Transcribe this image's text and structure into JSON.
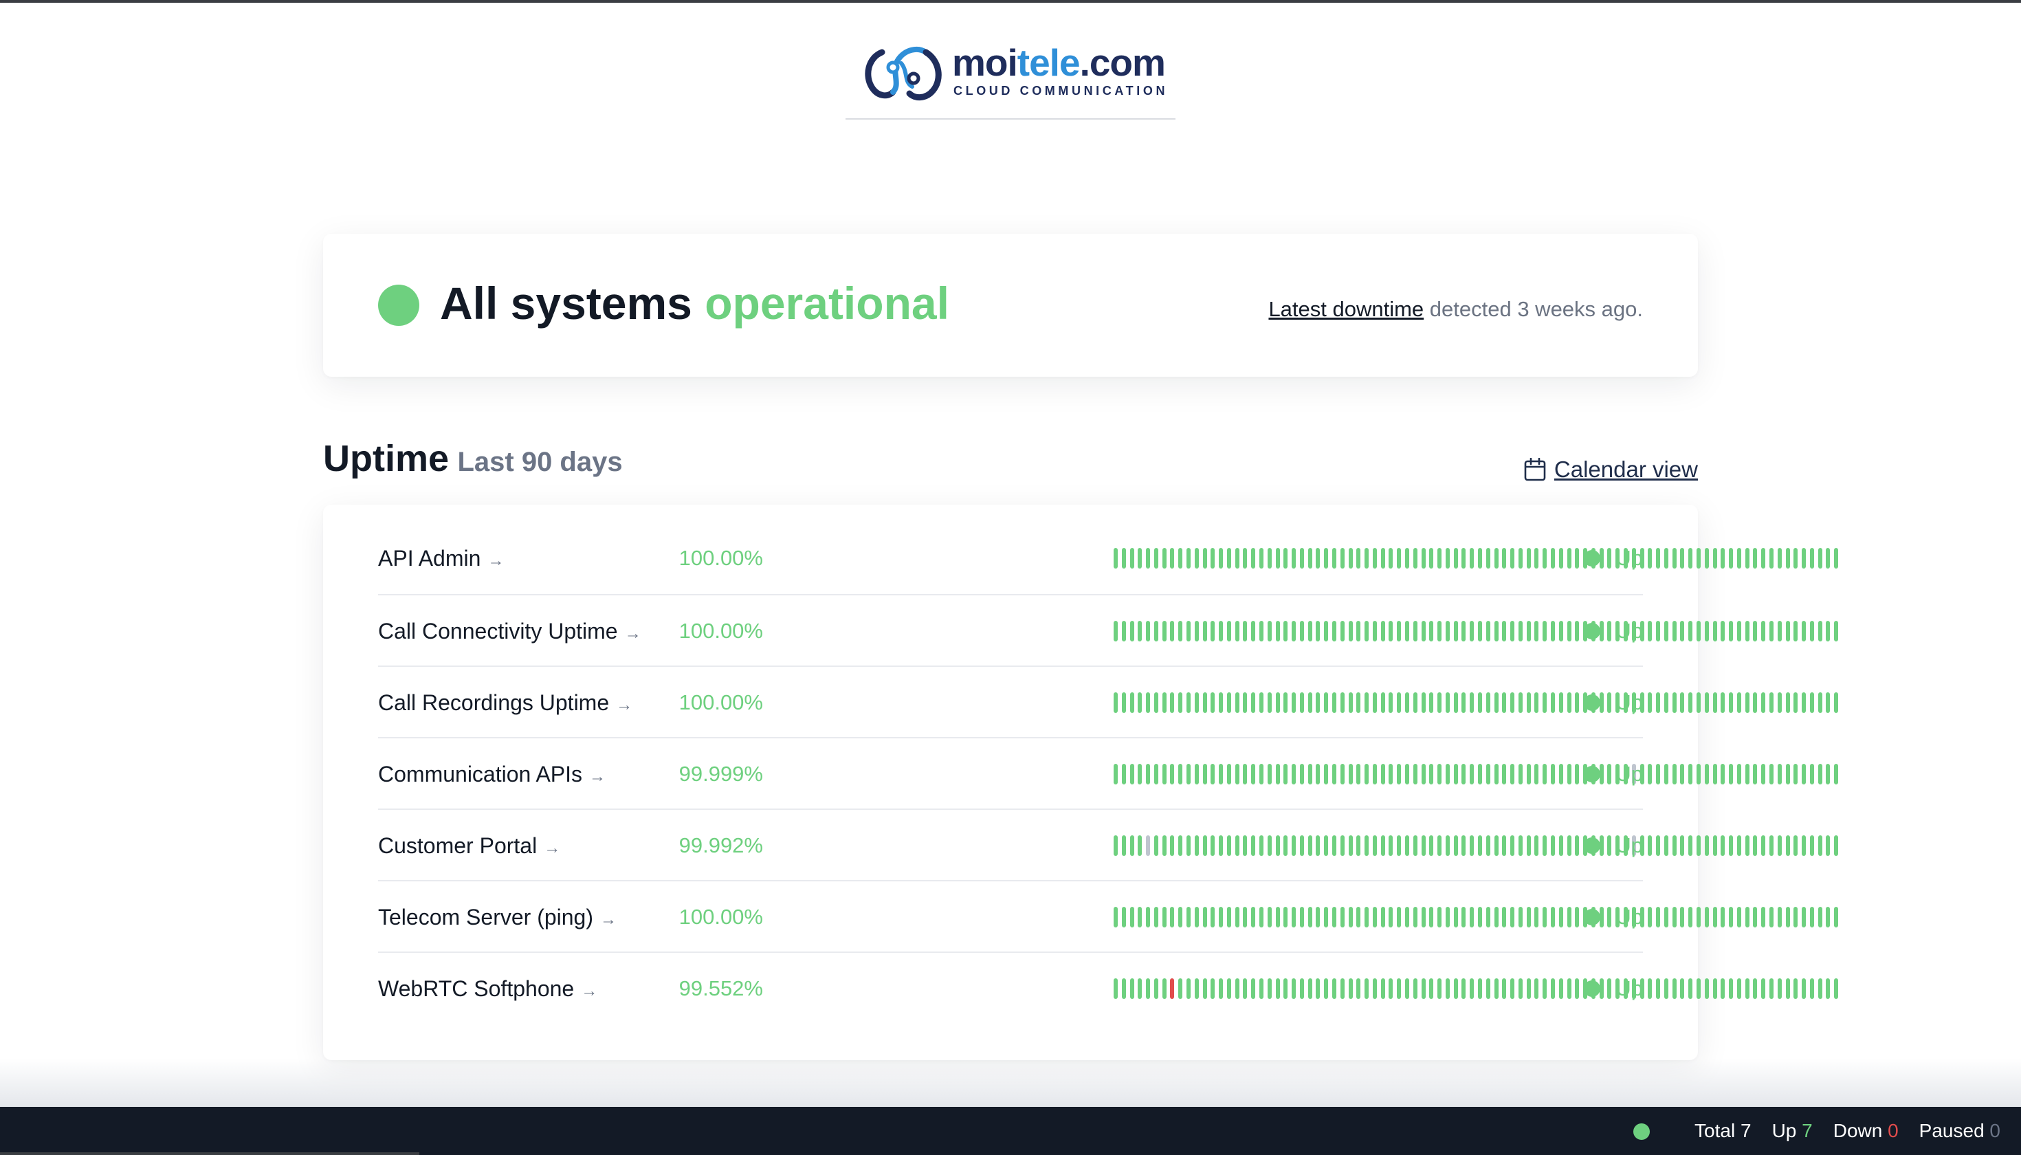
{
  "logo": {
    "name_part1": "moi",
    "name_part2": "tele",
    "name_part3": ".com",
    "tagline": "CLOUD COMMUNICATION"
  },
  "status": {
    "title_prefix": "All systems",
    "title_state": "operational",
    "latest_link": "Latest downtime",
    "latest_text": " detected 3 weeks ago."
  },
  "uptime": {
    "title": "Uptime",
    "period": "Last 90 days",
    "calendar_link": "Calendar view",
    "calendar_icon": "calendar-icon"
  },
  "monitors": [
    {
      "name": "API Admin",
      "uptime": "100.00%",
      "status": "Up",
      "bars_warn": [],
      "bars_down": []
    },
    {
      "name": "Call Connectivity Uptime",
      "uptime": "100.00%",
      "status": "Up",
      "bars_warn": [],
      "bars_down": []
    },
    {
      "name": "Call Recordings Uptime",
      "uptime": "100.00%",
      "status": "Up",
      "bars_warn": [],
      "bars_down": []
    },
    {
      "name": "Communication APIs",
      "uptime": "99.999%",
      "status": "Up",
      "bars_warn": [
        64
      ],
      "bars_down": []
    },
    {
      "name": "Customer Portal",
      "uptime": "99.992%",
      "status": "Up",
      "bars_warn": [
        4,
        64
      ],
      "bars_down": []
    },
    {
      "name": "Telecom Server (ping)",
      "uptime": "100.00%",
      "status": "Up",
      "bars_warn": [],
      "bars_down": []
    },
    {
      "name": "WebRTC Softphone",
      "uptime": "99.552%",
      "status": "Up",
      "bars_warn": [],
      "bars_down": [
        7
      ]
    }
  ],
  "bar_count": 90,
  "colors": {
    "up": "#6ed07f",
    "down": "#e14c4c",
    "partial": "#bfc5cf",
    "footer_bg": "#131a26"
  },
  "footer": {
    "total_label": "Total",
    "total_value": "7",
    "up_label": "Up",
    "up_value": "7",
    "down_label": "Down",
    "down_value": "0",
    "paused_label": "Paused",
    "paused_value": "0"
  }
}
